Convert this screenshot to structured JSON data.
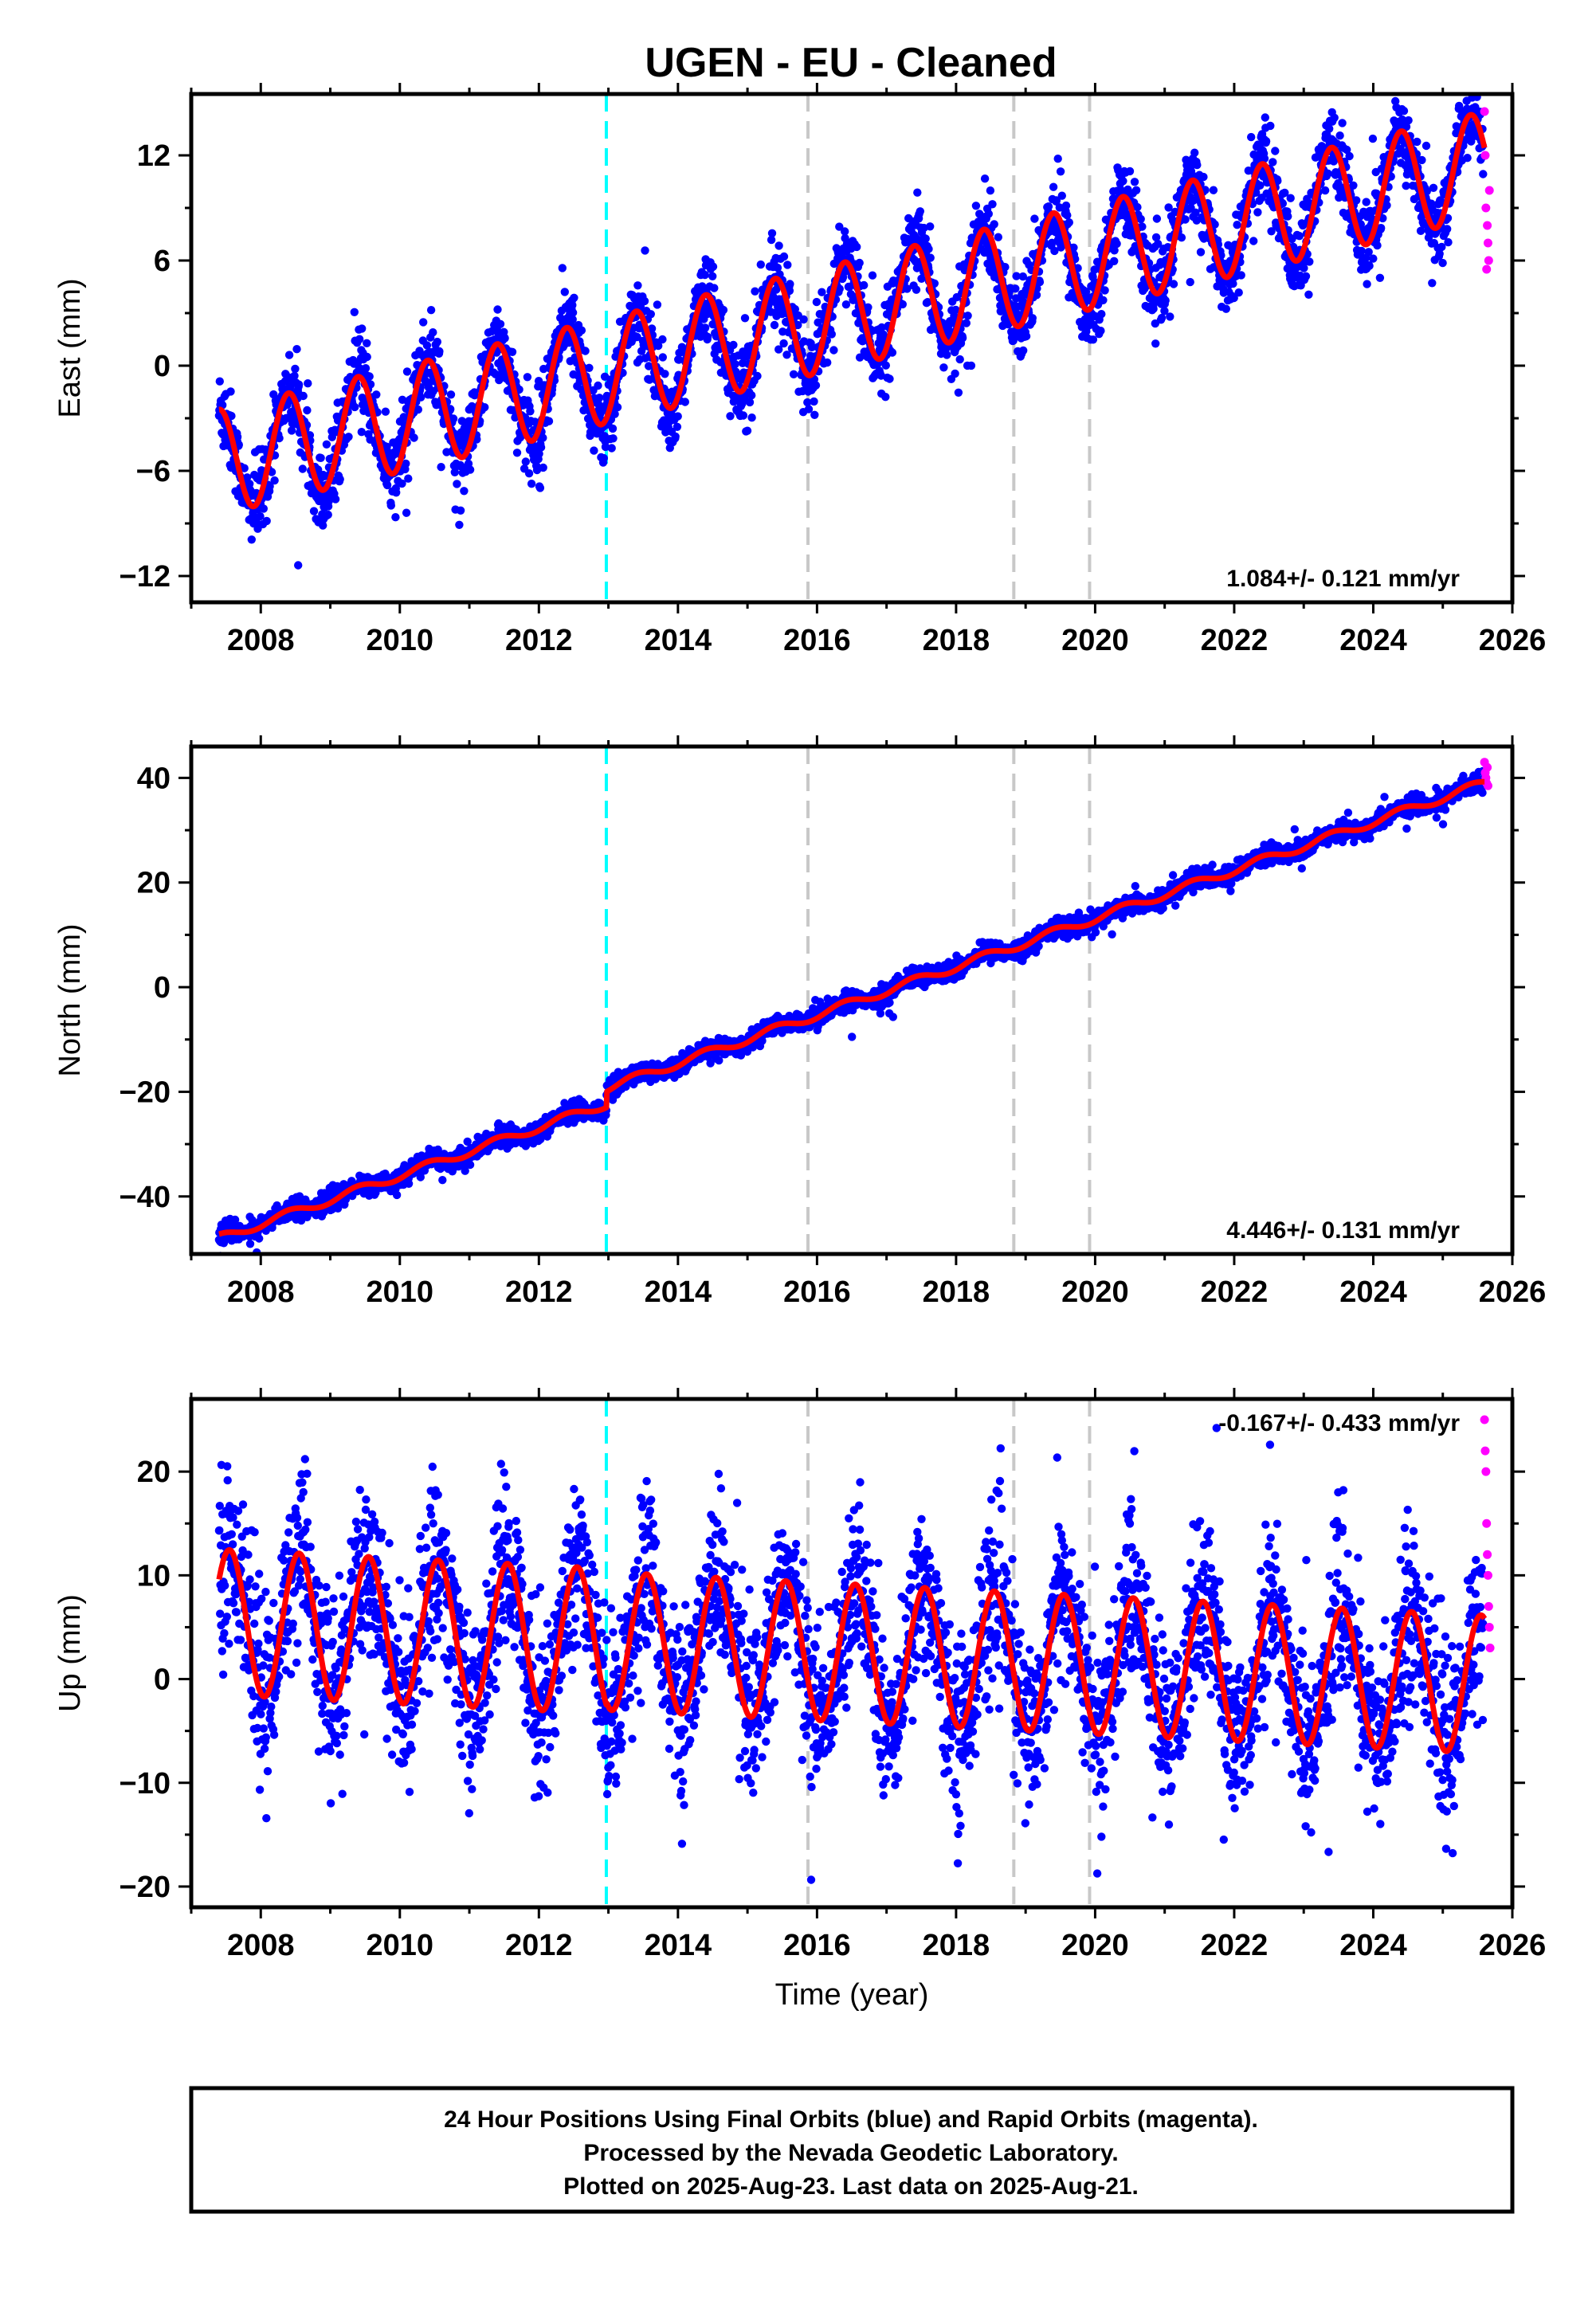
{
  "title": "UGEN  - EU - Cleaned",
  "footer": {
    "lines": [
      "24 Hour Positions Using Final Orbits (blue) and Rapid Orbits (magenta).",
      "Processed by the Nevada Geodetic Laboratory.",
      "Plotted on 2025-Aug-23. Last data on 2025-Aug-21."
    ]
  },
  "colors": {
    "final_orbits": "#0000ff",
    "rapid_orbits": "#ff00ff",
    "model_fit": "#ff0000",
    "antenna_change_line": "#00ffff",
    "equipment_change_line": "#c8c8c8"
  },
  "chart_data": [
    {
      "type": "scatter",
      "component": "east",
      "ylabel": "East (mm)",
      "xlabel": "",
      "xlim": [
        2007.0,
        2026.0
      ],
      "ylim": [
        -13.5,
        15.5
      ],
      "xticks": [
        "2008",
        "2010",
        "2012",
        "2014",
        "2016",
        "2018",
        "2020",
        "2022",
        "2024",
        "2026"
      ],
      "yticks": [
        "−12",
        "−6",
        "0",
        "6",
        "12"
      ],
      "ytick_values": [
        -12,
        -6,
        0,
        6,
        12
      ],
      "rate": "1.084+/- 0.121 mm/yr",
      "rate_position": "bottom-right",
      "vlines": [
        {
          "x": 2012.97,
          "style": "cyan-dashed"
        },
        {
          "x": 2015.87,
          "style": "gray-dashed"
        },
        {
          "x": 2018.83,
          "style": "gray-dashed"
        },
        {
          "x": 2019.92,
          "style": "gray-dashed"
        }
      ],
      "model": {
        "start": [
          2007.4,
          -5.5
        ],
        "end": [
          2025.6,
          11.5
        ],
        "seasonal_amplitude": 3.0,
        "phase_peak_frac": 0.4,
        "noise": 1.1
      },
      "rapid_points": [
        [
          2025.6,
          14.5
        ],
        [
          2025.62,
          9.0
        ],
        [
          2025.64,
          8.0
        ],
        [
          2025.65,
          7.0
        ],
        [
          2025.66,
          6.0
        ],
        [
          2025.67,
          10.0
        ],
        [
          2025.61,
          12.0
        ],
        [
          2025.63,
          5.5
        ]
      ],
      "grid": false
    },
    {
      "type": "scatter",
      "component": "north",
      "ylabel": "North (mm)",
      "xlabel": "",
      "xlim": [
        2007.0,
        2026.0
      ],
      "ylim": [
        -51,
        46
      ],
      "xticks": [
        "2008",
        "2010",
        "2012",
        "2014",
        "2016",
        "2018",
        "2020",
        "2022",
        "2024",
        "2026"
      ],
      "yticks": [
        "−40",
        "−20",
        "0",
        "20",
        "40"
      ],
      "ytick_values": [
        -40,
        -20,
        0,
        20,
        40
      ],
      "rate": "4.446+/- 0.131 mm/yr",
      "rate_position": "bottom-right",
      "vlines": [
        {
          "x": 2012.97,
          "style": "cyan-dashed"
        },
        {
          "x": 2015.87,
          "style": "gray-dashed"
        },
        {
          "x": 2018.83,
          "style": "gray-dashed"
        },
        {
          "x": 2019.92,
          "style": "gray-dashed"
        }
      ],
      "model": {
        "start": [
          2007.4,
          -46.5
        ],
        "end": [
          2025.6,
          37.5
        ],
        "seasonal_amplitude": 0.8,
        "phase_peak_frac": 0.4,
        "noise": 0.9,
        "offset_at": 2012.97,
        "offset": 3.0
      },
      "rapid_points": [
        [
          2025.6,
          43.0
        ],
        [
          2025.61,
          41.0
        ],
        [
          2025.62,
          40.0
        ],
        [
          2025.63,
          39.0
        ],
        [
          2025.64,
          42.0
        ],
        [
          2025.65,
          38.5
        ]
      ],
      "grid": false
    },
    {
      "type": "scatter",
      "component": "up",
      "ylabel": "Up (mm)",
      "xlabel": "Time (year)",
      "xlim": [
        2007.0,
        2026.0
      ],
      "ylim": [
        -22,
        27
      ],
      "xticks": [
        "2008",
        "2010",
        "2012",
        "2014",
        "2016",
        "2018",
        "2020",
        "2022",
        "2024",
        "2026"
      ],
      "yticks": [
        "−20",
        "−10",
        "0",
        "10",
        "20"
      ],
      "ytick_values": [
        -20,
        -10,
        0,
        10,
        20
      ],
      "rate": "-0.167+/- 0.433 mm/yr",
      "rate_position": "top-right",
      "vlines": [
        {
          "x": 2012.97,
          "style": "cyan-dashed"
        },
        {
          "x": 2015.87,
          "style": "gray-dashed"
        },
        {
          "x": 2018.83,
          "style": "gray-dashed"
        },
        {
          "x": 2019.92,
          "style": "gray-dashed"
        }
      ],
      "model": {
        "start": [
          2007.4,
          5.5
        ],
        "end": [
          2025.6,
          -0.5
        ],
        "seasonal_amplitude": 7.0,
        "phase_peak_frac": 0.55,
        "noise": 4.0
      },
      "rapid_points": [
        [
          2025.6,
          25.0
        ],
        [
          2025.61,
          22.0
        ],
        [
          2025.62,
          20.0
        ],
        [
          2025.63,
          15.0
        ],
        [
          2025.64,
          12.0
        ],
        [
          2025.65,
          10.0
        ],
        [
          2025.66,
          7.0
        ],
        [
          2025.67,
          5.0
        ],
        [
          2025.68,
          3.0
        ]
      ],
      "grid": false
    }
  ]
}
